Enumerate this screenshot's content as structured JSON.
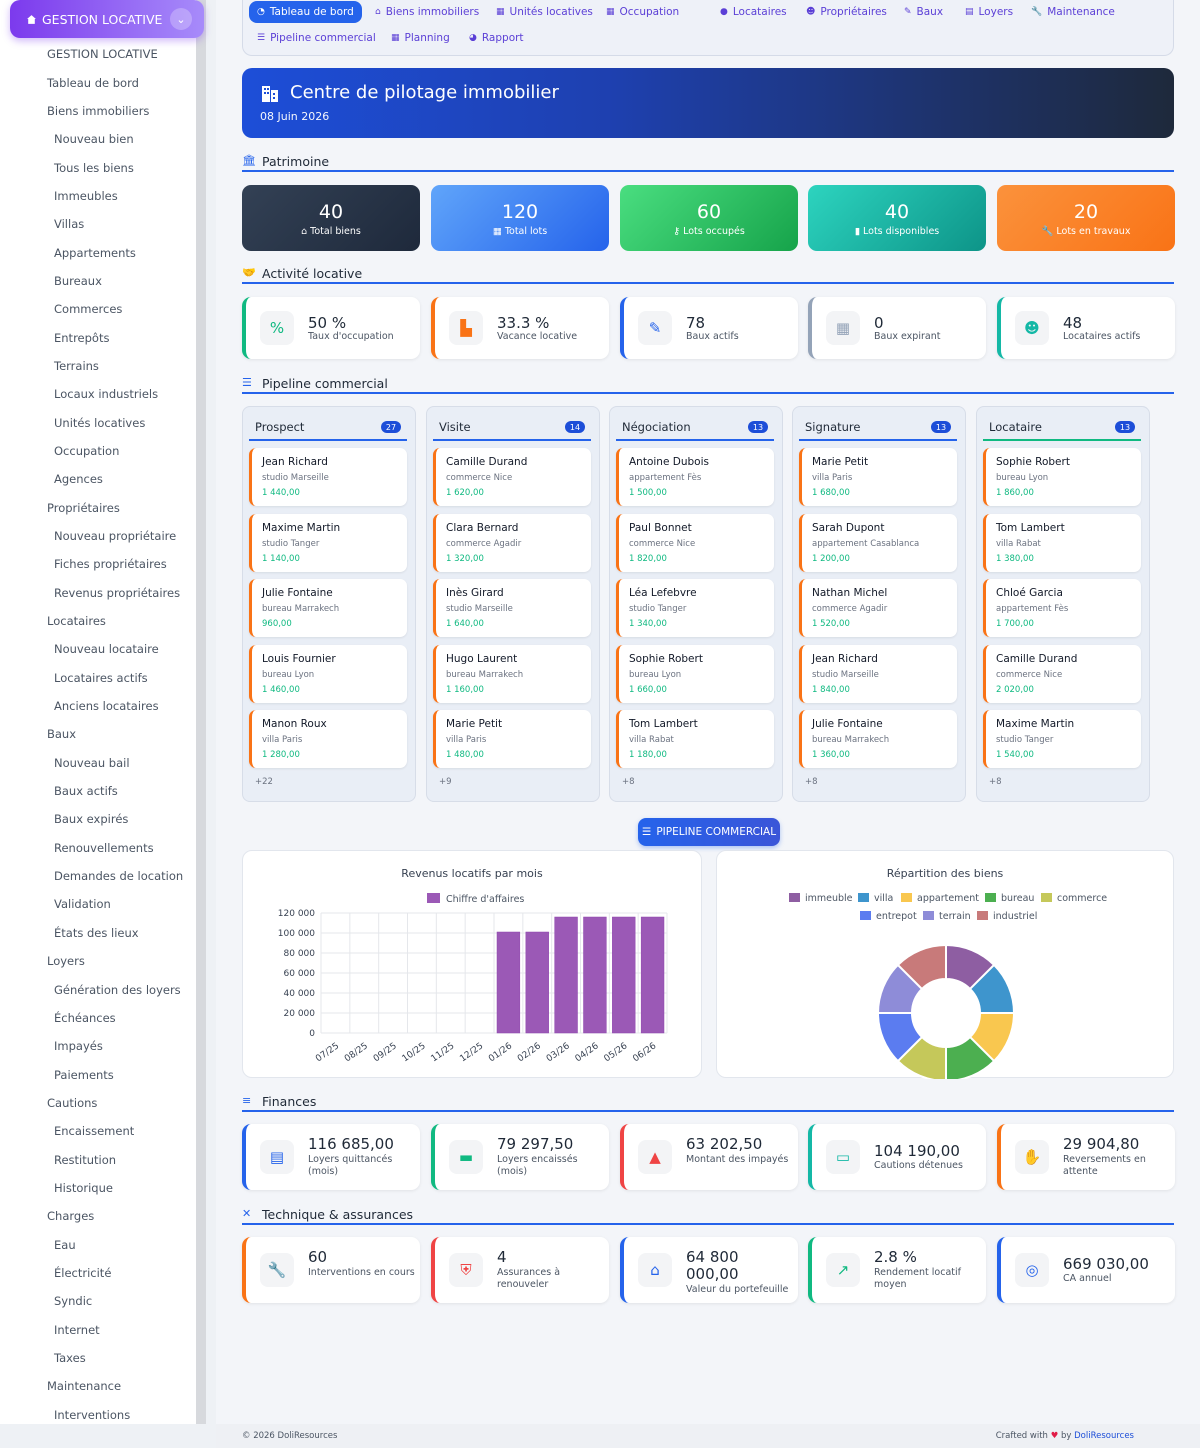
{
  "sidebar": {
    "brand": "GESTION LOCATIVE",
    "items": [
      {
        "label": "GESTION LOCATIVE",
        "level": 1
      },
      {
        "label": "Tableau de bord",
        "level": 1
      },
      {
        "label": "Biens immobiliers",
        "level": 1
      },
      {
        "label": "Nouveau bien",
        "level": 2
      },
      {
        "label": "Tous les biens",
        "level": 2
      },
      {
        "label": "Immeubles",
        "level": 2
      },
      {
        "label": "Villas",
        "level": 2
      },
      {
        "label": "Appartements",
        "level": 2
      },
      {
        "label": "Bureaux",
        "level": 2
      },
      {
        "label": "Commerces",
        "level": 2
      },
      {
        "label": "Entrepôts",
        "level": 2
      },
      {
        "label": "Terrains",
        "level": 2
      },
      {
        "label": "Locaux industriels",
        "level": 2
      },
      {
        "label": "Unités locatives",
        "level": 2
      },
      {
        "label": "Occupation",
        "level": 2
      },
      {
        "label": "Agences",
        "level": 2
      },
      {
        "label": "Propriétaires",
        "level": 1
      },
      {
        "label": "Nouveau propriétaire",
        "level": 2
      },
      {
        "label": "Fiches propriétaires",
        "level": 2
      },
      {
        "label": "Revenus propriétaires",
        "level": 2
      },
      {
        "label": "Locataires",
        "level": 1
      },
      {
        "label": "Nouveau locataire",
        "level": 2
      },
      {
        "label": "Locataires actifs",
        "level": 2
      },
      {
        "label": "Anciens locataires",
        "level": 2
      },
      {
        "label": "Baux",
        "level": 1
      },
      {
        "label": "Nouveau bail",
        "level": 2
      },
      {
        "label": "Baux actifs",
        "level": 2
      },
      {
        "label": "Baux expirés",
        "level": 2
      },
      {
        "label": "Renouvellements",
        "level": 2
      },
      {
        "label": "Demandes de location",
        "level": 2
      },
      {
        "label": "Validation",
        "level": 2
      },
      {
        "label": "États des lieux",
        "level": 2
      },
      {
        "label": "Loyers",
        "level": 1
      },
      {
        "label": "Génération des loyers",
        "level": 2
      },
      {
        "label": "Échéances",
        "level": 2
      },
      {
        "label": "Impayés",
        "level": 2
      },
      {
        "label": "Paiements",
        "level": 2
      },
      {
        "label": "Cautions",
        "level": 1
      },
      {
        "label": "Encaissement",
        "level": 2
      },
      {
        "label": "Restitution",
        "level": 2
      },
      {
        "label": "Historique",
        "level": 2
      },
      {
        "label": "Charges",
        "level": 1
      },
      {
        "label": "Eau",
        "level": 2
      },
      {
        "label": "Électricité",
        "level": 2
      },
      {
        "label": "Syndic",
        "level": 2
      },
      {
        "label": "Internet",
        "level": 2
      },
      {
        "label": "Taxes",
        "level": 2
      },
      {
        "label": "Maintenance",
        "level": 1
      },
      {
        "label": "Interventions",
        "level": 2
      }
    ]
  },
  "nav": {
    "row1": [
      {
        "label": "Tableau de bord",
        "icon": "dashboard-icon",
        "active": true
      },
      {
        "label": "Biens immobiliers",
        "icon": "home-icon"
      },
      {
        "label": "Unités locatives",
        "icon": "grid-icon"
      },
      {
        "label": "Occupation",
        "icon": "grid-icon"
      },
      {
        "label": "Locataires",
        "icon": "user-icon"
      },
      {
        "label": "Propriétaires",
        "icon": "users-icon"
      },
      {
        "label": "Baux",
        "icon": "contract-icon"
      },
      {
        "label": "Loyers",
        "icon": "receipt-icon"
      },
      {
        "label": "Maintenance",
        "icon": "wrench-icon"
      }
    ],
    "row2": [
      {
        "label": "Pipeline commercial",
        "icon": "list-icon"
      },
      {
        "label": "Planning",
        "icon": "calendar-icon"
      },
      {
        "label": "Rapport",
        "icon": "chart-pie-icon"
      }
    ]
  },
  "hero": {
    "title": "Centre de pilotage immobilier",
    "date": "08 Juin 2026"
  },
  "sections": {
    "patrimoine": "Patrimoine",
    "activite": "Activité locative",
    "pipeline": "Pipeline commercial",
    "finances": "Finances",
    "technique": "Technique & assurances"
  },
  "patrimoine": [
    {
      "value": "40",
      "label": "Total biens",
      "icon": "home-icon",
      "color": "#1f2937"
    },
    {
      "value": "120",
      "label": "Total lots",
      "icon": "grid-icon",
      "color": "#2563eb"
    },
    {
      "value": "60",
      "label": "Lots occupés",
      "icon": "key-icon",
      "color": "#22c55e"
    },
    {
      "value": "40",
      "label": "Lots disponibles",
      "icon": "door-icon",
      "color": "#14b8a6"
    },
    {
      "value": "20",
      "label": "Lots en travaux",
      "icon": "wrench-icon",
      "color": "#f97316"
    }
  ],
  "activite": [
    {
      "value": "50 %",
      "label": "Taux d'occupation",
      "icon": "percent-icon",
      "color": "#10b981"
    },
    {
      "value": "33.3 %",
      "label": "Vacance locative",
      "icon": "door-open-icon",
      "color": "#f97316"
    },
    {
      "value": "78",
      "label": "Baux actifs",
      "icon": "contract-icon",
      "color": "#2563eb"
    },
    {
      "value": "0",
      "label": "Baux expirant",
      "icon": "calendar-icon",
      "color": "#94a3b8"
    },
    {
      "value": "48",
      "label": "Locataires actifs",
      "icon": "users-icon",
      "color": "#14b8a6"
    }
  ],
  "pipeline": [
    {
      "title": "Prospect",
      "count": "27",
      "color": "#2563eb",
      "more": "+22",
      "cards": [
        {
          "name": "Jean Richard",
          "desc": "studio Marseille",
          "amount": "1 440,00"
        },
        {
          "name": "Maxime Martin",
          "desc": "studio Tanger",
          "amount": "1 140,00"
        },
        {
          "name": "Julie Fontaine",
          "desc": "bureau Marrakech",
          "amount": "960,00"
        },
        {
          "name": "Louis Fournier",
          "desc": "bureau Lyon",
          "amount": "1 460,00"
        },
        {
          "name": "Manon Roux",
          "desc": "villa Paris",
          "amount": "1 280,00"
        }
      ]
    },
    {
      "title": "Visite",
      "count": "14",
      "color": "#2563eb",
      "more": "+9",
      "cards": [
        {
          "name": "Camille Durand",
          "desc": "commerce Nice",
          "amount": "1 620,00"
        },
        {
          "name": "Clara Bernard",
          "desc": "commerce Agadir",
          "amount": "1 320,00"
        },
        {
          "name": "Inès Girard",
          "desc": "studio Marseille",
          "amount": "1 640,00"
        },
        {
          "name": "Hugo Laurent",
          "desc": "bureau Marrakech",
          "amount": "1 160,00"
        },
        {
          "name": "Marie Petit",
          "desc": "villa Paris",
          "amount": "1 480,00"
        }
      ]
    },
    {
      "title": "Négociation",
      "count": "13",
      "color": "#2563eb",
      "more": "+8",
      "cards": [
        {
          "name": "Antoine Dubois",
          "desc": "appartement Fès",
          "amount": "1 500,00"
        },
        {
          "name": "Paul Bonnet",
          "desc": "commerce Nice",
          "amount": "1 820,00"
        },
        {
          "name": "Léa Lefebvre",
          "desc": "studio Tanger",
          "amount": "1 340,00"
        },
        {
          "name": "Sophie Robert",
          "desc": "bureau Lyon",
          "amount": "1 660,00"
        },
        {
          "name": "Tom Lambert",
          "desc": "villa Rabat",
          "amount": "1 180,00"
        }
      ]
    },
    {
      "title": "Signature",
      "count": "13",
      "color": "#2563eb",
      "more": "+8",
      "cards": [
        {
          "name": "Marie Petit",
          "desc": "villa Paris",
          "amount": "1 680,00"
        },
        {
          "name": "Sarah Dupont",
          "desc": "appartement Casablanca",
          "amount": "1 200,00"
        },
        {
          "name": "Nathan Michel",
          "desc": "commerce Agadir",
          "amount": "1 520,00"
        },
        {
          "name": "Jean Richard",
          "desc": "studio Marseille",
          "amount": "1 840,00"
        },
        {
          "name": "Julie Fontaine",
          "desc": "bureau Marrakech",
          "amount": "1 360,00"
        }
      ]
    },
    {
      "title": "Locataire",
      "count": "13",
      "color": "#10b981",
      "more": "+8",
      "cards": [
        {
          "name": "Sophie Robert",
          "desc": "bureau Lyon",
          "amount": "1 860,00"
        },
        {
          "name": "Tom Lambert",
          "desc": "villa Rabat",
          "amount": "1 380,00"
        },
        {
          "name": "Chloé Garcia",
          "desc": "appartement Fès",
          "amount": "1 700,00"
        },
        {
          "name": "Camille Durand",
          "desc": "commerce Nice",
          "amount": "2 020,00"
        },
        {
          "name": "Maxime Martin",
          "desc": "studio Tanger",
          "amount": "1 540,00"
        }
      ]
    }
  ],
  "pipeline_button": "PIPELINE COMMERCIAL",
  "chart_data": [
    {
      "type": "bar",
      "title": "Revenus locatifs par mois",
      "legend": [
        "Chiffre d'affaires"
      ],
      "categories": [
        "07/25",
        "08/25",
        "09/25",
        "10/25",
        "11/25",
        "12/25",
        "01/26",
        "02/26",
        "03/26",
        "04/26",
        "05/26",
        "06/26"
      ],
      "series": [
        {
          "name": "Chiffre d'affaires",
          "values": [
            0,
            0,
            0,
            0,
            0,
            0,
            101000,
            101000,
            116000,
            116000,
            116000,
            116000
          ]
        }
      ],
      "ylim": [
        0,
        120000
      ],
      "yticks": [
        "0",
        "20 000",
        "40 000",
        "60 000",
        "80 000",
        "100 000",
        "120 000"
      ],
      "color": "#9b59b6",
      "grid": true
    },
    {
      "type": "pie",
      "title": "Répartition des biens",
      "categories": [
        "immeuble",
        "villa",
        "appartement",
        "bureau",
        "commerce",
        "entrepot",
        "terrain",
        "industriel"
      ],
      "values": [
        5,
        5,
        5,
        5,
        5,
        5,
        5,
        5
      ],
      "colors": [
        "#8e5ea2",
        "#3e95cd",
        "#f9c74f",
        "#4caf50",
        "#c5c85a",
        "#5b7cf0",
        "#8e8cd8",
        "#c87a7a"
      ]
    }
  ],
  "finances": [
    {
      "value": "116 685,00",
      "label": "Loyers quittancés (mois)",
      "icon": "file-icon",
      "color": "#2563eb"
    },
    {
      "value": "79 297,50",
      "label": "Loyers encaissés (mois)",
      "icon": "money-icon",
      "color": "#10b981"
    },
    {
      "value": "63 202,50",
      "label": "Montant des impayés",
      "icon": "warning-icon",
      "color": "#ef4444"
    },
    {
      "value": "104 190,00",
      "label": "Cautions détenues",
      "icon": "money-check-icon",
      "color": "#14b8a6"
    },
    {
      "value": "29 904,80",
      "label": "Reversements en attente",
      "icon": "hand-money-icon",
      "color": "#f97316"
    }
  ],
  "technique": [
    {
      "value": "60",
      "label": "Interventions en cours",
      "icon": "wrench-icon",
      "color": "#f97316"
    },
    {
      "value": "4",
      "label": "Assurances à renouveler",
      "icon": "shield-icon",
      "color": "#ef4444"
    },
    {
      "value": "64 800 000,00",
      "label": "Valeur du portefeuille",
      "icon": "house-icon",
      "color": "#2563eb"
    },
    {
      "value": "2.8 %",
      "label": "Rendement locatif moyen",
      "icon": "chart-line-icon",
      "color": "#10b981"
    },
    {
      "value": "669 030,00",
      "label": "CA annuel",
      "icon": "coins-icon",
      "color": "#2563eb"
    }
  ],
  "footer": {
    "left": "© 2026 DoliResources",
    "crafted": "Crafted with",
    "heart": "♥",
    "by": "by",
    "brand": "DoliResources"
  }
}
